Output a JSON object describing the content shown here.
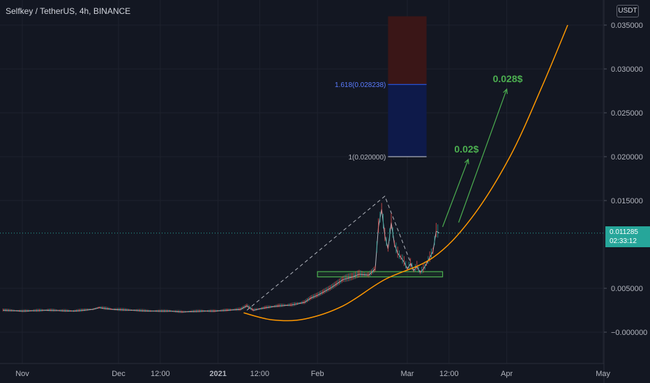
{
  "header": {
    "title": "Selfkey / TetherUS, 4h, BINANCE",
    "currency_label": "USDT"
  },
  "last_price": {
    "value": "0.011285",
    "countdown": "02:33:12"
  },
  "chart_data": {
    "type": "line",
    "symbol": "Selfkey / TetherUS",
    "interval": "4h",
    "exchange": "BINANCE",
    "grid": true,
    "ylim": [
      -0.0025,
      0.036
    ],
    "y_ticks": [
      {
        "label": "0.035000",
        "value": 0.035
      },
      {
        "label": "0.030000",
        "value": 0.03
      },
      {
        "label": "0.025000",
        "value": 0.025
      },
      {
        "label": "0.020000",
        "value": 0.02
      },
      {
        "label": "0.015000",
        "value": 0.015
      },
      {
        "label": "0.005000",
        "value": 0.005
      },
      {
        "label": "−0.000000",
        "value": 0.0
      }
    ],
    "x_ticks": [
      {
        "label": "Nov",
        "t": 0
      },
      {
        "label": "Dec",
        "t": 30
      },
      {
        "label": "12:00",
        "t": 43
      },
      {
        "label": "2021",
        "t": 61
      },
      {
        "label": "12:00",
        "t": 74
      },
      {
        "label": "Feb",
        "t": 92
      },
      {
        "label": "Mar",
        "t": 120
      },
      {
        "label": "12:00",
        "t": 133
      },
      {
        "label": "Apr",
        "t": 151
      },
      {
        "label": "May",
        "t": 181
      }
    ],
    "series": [
      {
        "color": "#b2b5be",
        "x": [
          -6,
          0,
          8,
          16,
          22,
          24,
          28,
          34,
          40,
          46,
          50,
          56,
          60,
          64,
          68,
          70,
          72,
          76,
          80,
          84,
          88,
          90,
          92,
          94,
          96,
          98,
          100,
          103,
          105,
          108,
          110,
          111,
          112,
          113,
          114,
          115,
          116,
          117,
          118,
          119,
          120,
          121,
          122,
          123,
          124,
          125,
          126,
          127,
          128,
          129,
          130
        ],
        "values": [
          0.0025,
          0.0024,
          0.0025,
          0.0024,
          0.0026,
          0.0028,
          0.0026,
          0.0025,
          0.0024,
          0.0024,
          0.0023,
          0.0024,
          0.0024,
          0.0025,
          0.0026,
          0.003,
          0.0025,
          0.0028,
          0.003,
          0.0031,
          0.0034,
          0.0039,
          0.0042,
          0.0046,
          0.005,
          0.0055,
          0.006,
          0.0063,
          0.0066,
          0.0065,
          0.0072,
          0.012,
          0.014,
          0.011,
          0.0095,
          0.0125,
          0.01,
          0.009,
          0.0085,
          0.008,
          0.0072,
          0.0078,
          0.007,
          0.0075,
          0.0068,
          0.0072,
          0.0078,
          0.0085,
          0.0092,
          0.0115,
          0.0113
        ]
      }
    ],
    "fibonacci": {
      "levels": [
        {
          "label": "1.618(0.028238)",
          "value": 0.028238
        },
        {
          "label": "1(0.020000)",
          "value": 0.02
        }
      ],
      "t_range": [
        114,
        126
      ],
      "top": 0.036,
      "colors": {
        "upper": "#3a1617",
        "lower": "#0e1a4a",
        "level": "#2962ff",
        "base": "#d1d4dc"
      }
    },
    "support_zone": {
      "t_range": [
        92,
        131
      ],
      "low": 0.0063,
      "high": 0.0069,
      "color": "#4caf50"
    },
    "dashed_triangle": {
      "points": [
        {
          "t": 70,
          "v": 0.0025
        },
        {
          "t": 113,
          "v": 0.0155
        },
        {
          "t": 122,
          "v": 0.007
        }
      ],
      "color": "#b2b5be"
    },
    "curve": {
      "color": "#ff9800",
      "points": [
        {
          "t": 69,
          "v": 0.0022
        },
        {
          "t": 78,
          "v": 0.0014
        },
        {
          "t": 88,
          "v": 0.0015
        },
        {
          "t": 100,
          "v": 0.003
        },
        {
          "t": 113,
          "v": 0.006
        },
        {
          "t": 128,
          "v": 0.0085
        },
        {
          "t": 140,
          "v": 0.013
        },
        {
          "t": 152,
          "v": 0.02
        },
        {
          "t": 162,
          "v": 0.028
        },
        {
          "t": 170,
          "v": 0.035
        }
      ]
    },
    "projection_arrows": [
      {
        "label": "0.02$",
        "from": {
          "t": 131,
          "v": 0.012
        },
        "to": {
          "t": 139,
          "v": 0.0197
        },
        "color": "#4caf50"
      },
      {
        "label": "0.028$",
        "from": {
          "t": 136,
          "v": 0.0125
        },
        "to": {
          "t": 151,
          "v": 0.0277
        },
        "color": "#4caf50"
      }
    ]
  }
}
